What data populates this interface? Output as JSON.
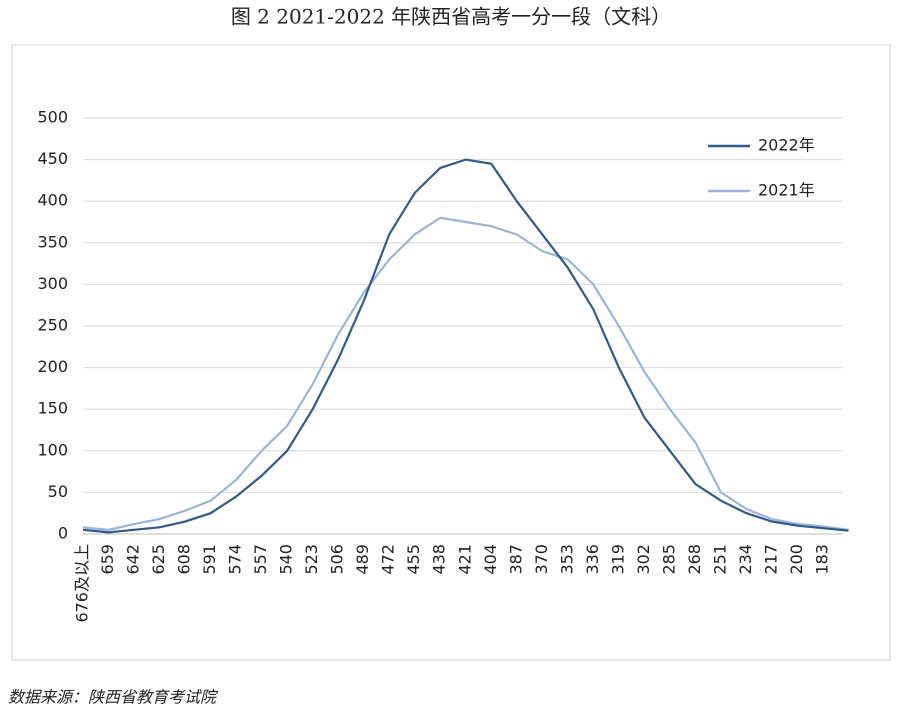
{
  "chart_data": {
    "type": "line",
    "title": "图 2 2021-2022 年陕西省高考一分一段（文科）",
    "source": "数据来源：陕西省教育考试院",
    "categories": [
      "676及以上",
      "659",
      "642",
      "625",
      "608",
      "591",
      "574",
      "557",
      "540",
      "523",
      "506",
      "489",
      "472",
      "455",
      "438",
      "421",
      "404",
      "387",
      "370",
      "353",
      "336",
      "319",
      "302",
      "285",
      "268",
      "251",
      "234",
      "217",
      "200",
      "183",
      null
    ],
    "series": [
      {
        "name": "2022年",
        "color": "#2f5a8c",
        "values": [
          5,
          2,
          5,
          8,
          15,
          25,
          45,
          70,
          100,
          150,
          210,
          280,
          360,
          410,
          440,
          450,
          445,
          400,
          360,
          320,
          270,
          200,
          140,
          100,
          60,
          40,
          25,
          15,
          10,
          7,
          4
        ]
      },
      {
        "name": "2021年",
        "color": "#9ab5d9",
        "values": [
          8,
          5,
          12,
          18,
          28,
          40,
          65,
          100,
          130,
          180,
          240,
          290,
          330,
          360,
          380,
          375,
          370,
          360,
          340,
          330,
          300,
          250,
          195,
          150,
          110,
          50,
          30,
          18,
          12,
          9,
          5
        ]
      }
    ],
    "ylim": [
      0,
      500
    ],
    "yticks": [
      0,
      50,
      100,
      150,
      200,
      250,
      300,
      350,
      400,
      450,
      500
    ],
    "grid": true,
    "legend": "upper right"
  }
}
